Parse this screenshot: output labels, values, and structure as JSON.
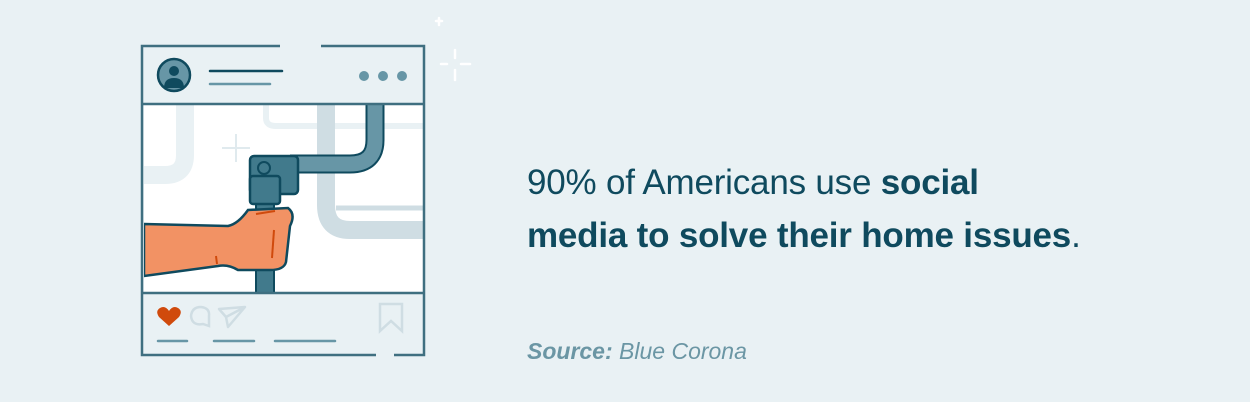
{
  "headline": {
    "prefix": "90% of Americans use ",
    "bold_1": "social",
    "bold_2": "media to solve their home issues",
    "suffix": "."
  },
  "source": {
    "label": "Source:",
    "value": " Blue Corona"
  },
  "illustration": {
    "icons": [
      "avatar-icon",
      "more-dots-icon",
      "heart-icon",
      "comment-icon",
      "send-icon",
      "bookmark-icon",
      "sparkle-icon"
    ],
    "colors": {
      "frame": "#3f6f80",
      "pipe": "#6796a6",
      "pipe_dark": "#417a8c",
      "hand": "#f29264",
      "heart": "#d04a0c",
      "background": "#e9f1f4"
    }
  }
}
